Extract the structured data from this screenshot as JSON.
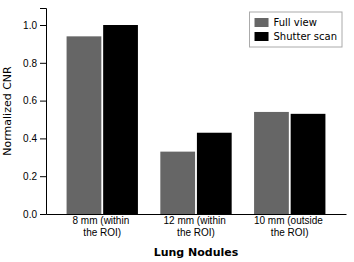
{
  "chart_data": {
    "type": "bar",
    "xlabel": "Lung Nodules",
    "ylabel": "Normalized CNR",
    "categories": [
      "8 mm (within the ROI)",
      "12 mm (within the ROI)",
      "10 mm (outside the ROI)"
    ],
    "series": [
      {
        "name": "Full view",
        "color": "#666666",
        "values": [
          0.94,
          0.33,
          0.54
        ]
      },
      {
        "name": "Shutter scan",
        "color": "#000000",
        "values": [
          1.0,
          0.43,
          0.53
        ]
      }
    ],
    "ylim": [
      0.0,
      1.09
    ],
    "yticks": [
      {
        "value": 0.0,
        "label": "0.0"
      },
      0.2,
      0.4,
      0.6,
      0.8,
      {
        "value": 1.0,
        "label": "1.0"
      }
    ],
    "grid": false,
    "legend": "upper right"
  }
}
